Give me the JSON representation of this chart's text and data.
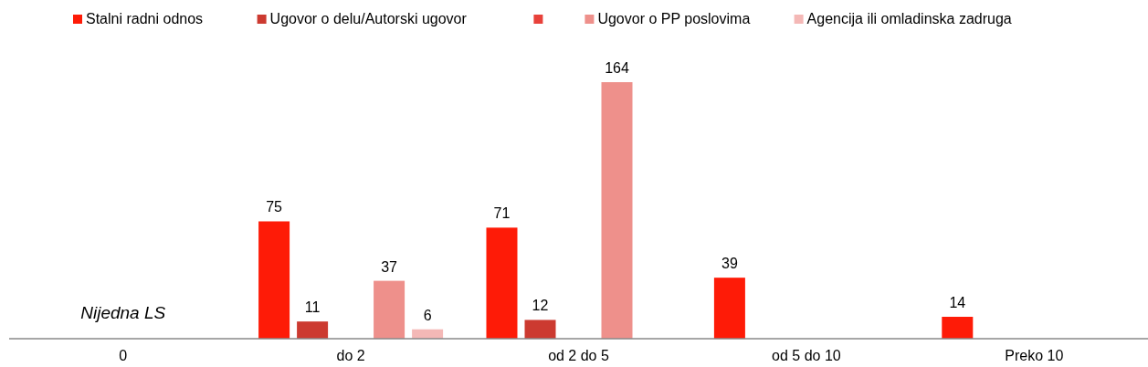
{
  "chart_data": {
    "type": "bar",
    "categories": [
      "0",
      "do 2",
      "od 2 do 5",
      "od 5 do 10",
      "Preko 10"
    ],
    "series": [
      {
        "name": "Stalni radni odnos",
        "color": "#fe1b07",
        "values": [
          null,
          75,
          71,
          39,
          14
        ]
      },
      {
        "name": "Ugovor o delu/Autorski ugovor",
        "color": "#cc3a30",
        "values": [
          null,
          11,
          12,
          null,
          null
        ]
      },
      {
        "color": "#e8413a",
        "values": [
          null,
          null,
          null,
          null,
          null
        ]
      },
      {
        "name": "Ugovor o PP poslovima",
        "color": "#ee908b",
        "values": [
          null,
          37,
          164,
          null,
          null
        ]
      },
      {
        "name": "Agencija ili omladinska zadruga",
        "color": "#f4b8b6",
        "values": [
          null,
          6,
          null,
          null,
          null
        ]
      }
    ],
    "data_labels": true,
    "legend": "top",
    "tick_labels": "x",
    "annotations": [
      "Nijedna LS"
    ]
  }
}
